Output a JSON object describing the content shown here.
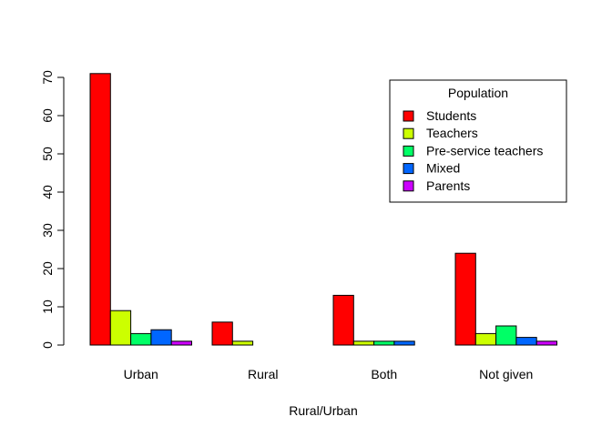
{
  "chart_data": {
    "type": "bar",
    "layout": "grouped",
    "categories": [
      "Urban",
      "Rural",
      "Both",
      "Not given"
    ],
    "series": [
      {
        "name": "Students",
        "color": "#FF0000",
        "values": [
          71,
          6,
          13,
          24
        ]
      },
      {
        "name": "Teachers",
        "color": "#CCFF00",
        "values": [
          9,
          1,
          1,
          3
        ]
      },
      {
        "name": "Pre-service teachers",
        "color": "#00FF66",
        "values": [
          3,
          0,
          1,
          5
        ]
      },
      {
        "name": "Mixed",
        "color": "#0066FF",
        "values": [
          4,
          0,
          1,
          2
        ]
      },
      {
        "name": "Parents",
        "color": "#CC00FF",
        "values": [
          1,
          0,
          0,
          1
        ]
      }
    ],
    "title": "",
    "xlabel": "Rural/Urban",
    "ylabel": "",
    "ylim": [
      0,
      70
    ],
    "yticks": [
      0,
      10,
      20,
      30,
      40,
      50,
      60,
      70
    ],
    "grid": false,
    "legend": {
      "title": "Population",
      "placement": "top-right"
    }
  }
}
